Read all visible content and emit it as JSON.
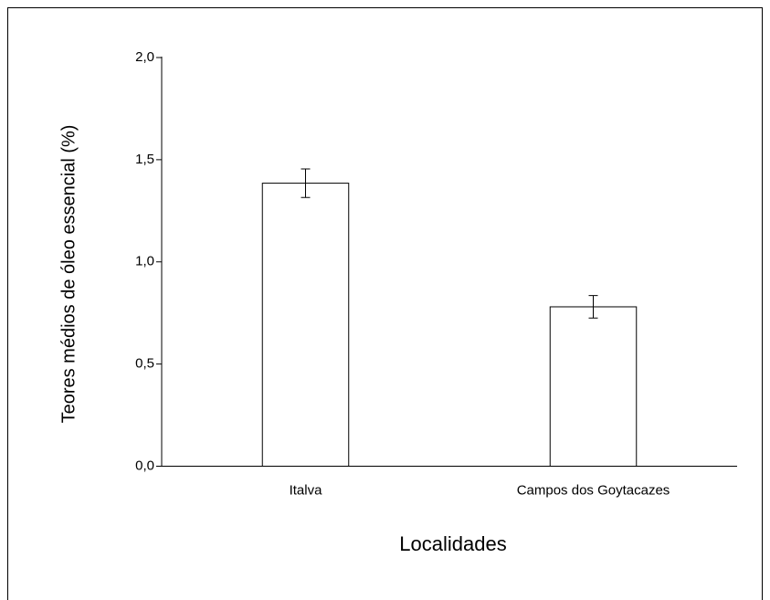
{
  "chart_data": {
    "type": "bar",
    "categories": [
      "Italva",
      "Campos dos Goytacazes"
    ],
    "values": [
      1.385,
      0.78
    ],
    "errors": [
      0.07,
      0.055
    ],
    "color": "#ffffff",
    "x_label": "Localidades",
    "y_label": "Teores médios de óleo essencial (%)",
    "ylim": [
      0,
      2.0
    ],
    "yticks": [
      {
        "value": 0,
        "label": "0,0"
      },
      {
        "value": 0.5,
        "label": "0,5"
      },
      {
        "value": 1.0,
        "label": "1,0"
      },
      {
        "value": 1.5,
        "label": "1,5"
      },
      {
        "value": 2.0,
        "label": "2,0"
      }
    ],
    "grid": false
  }
}
